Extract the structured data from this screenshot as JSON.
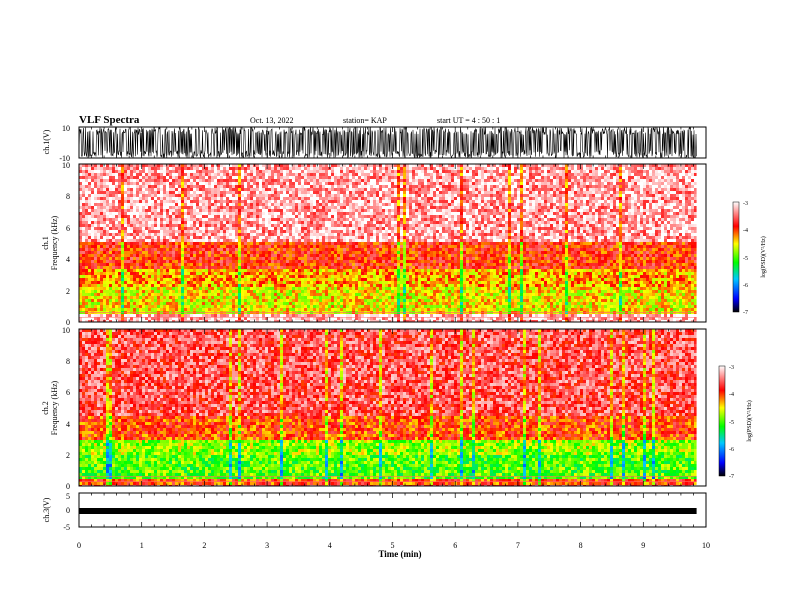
{
  "header": {
    "title": "VLF Spectra",
    "date": "Oct. 13, 2022",
    "station": "station= KAP",
    "start_ut": "start  UT =   4 : 50 : 1"
  },
  "chart_data": [
    {
      "type": "line",
      "panel": "ch1-waveform",
      "ylabel": "ch.1(V)",
      "ylim": [
        -10,
        10
      ],
      "yticks": [
        "10",
        "-10"
      ],
      "x_range_min": [
        0,
        9.85
      ],
      "description_level": "dense oscillating waveform filling most of range"
    },
    {
      "type": "heatmap",
      "panel": "ch1-spectrogram",
      "ylabel": "ch.1",
      "ylabel2": "Frequency  (kHz)",
      "ylim": [
        0,
        10
      ],
      "yticks": [
        "0",
        "2",
        "4",
        "6",
        "8",
        "10"
      ],
      "x_range_min": [
        0,
        9.85
      ],
      "bands_khz": [
        {
          "from": 0,
          "to": 0.6,
          "level": -3.2
        },
        {
          "from": 0.6,
          "to": 2.2,
          "level": -4.5
        },
        {
          "from": 2.2,
          "to": 3.3,
          "level": -4.3
        },
        {
          "from": 3.3,
          "to": 5,
          "level": -3.9
        },
        {
          "from": 5,
          "to": 10,
          "level": -3.3
        }
      ],
      "colorbar": {
        "min": -7,
        "max": -3,
        "ticks": [
          "-3",
          "-4",
          "-5",
          "-6",
          "-7"
        ],
        "label": "log(PSD)(V²/Hz)"
      }
    },
    {
      "type": "heatmap",
      "panel": "ch2-spectrogram",
      "ylabel": "ch.2",
      "ylabel2": "Frequency  (kHz)",
      "ylim": [
        0,
        10
      ],
      "yticks": [
        "0",
        "2",
        "4",
        "6",
        "8",
        "10"
      ],
      "x_range_min": [
        0,
        9.85
      ],
      "bands_khz": [
        {
          "from": 0,
          "to": 0.5,
          "level": -4.0
        },
        {
          "from": 0.5,
          "to": 2.0,
          "level": -5.0
        },
        {
          "from": 2.0,
          "to": 3.0,
          "level": -4.8
        },
        {
          "from": 3.0,
          "to": 4.5,
          "level": -4.0
        },
        {
          "from": 4.5,
          "to": 10,
          "level": -3.6
        }
      ],
      "colorbar": {
        "min": -7,
        "max": -3,
        "ticks": [
          "-3",
          "-4",
          "-5",
          "-6",
          "-7"
        ],
        "label": "log(PSD)(V²/Hz)"
      }
    },
    {
      "type": "line",
      "panel": "ch3-waveform",
      "ylabel": "ch.3(V)",
      "ylim": [
        -5,
        5
      ],
      "yticks": [
        "5",
        "0",
        "-5"
      ],
      "x_range_min": [
        0,
        9.85
      ],
      "level_v": 0
    }
  ],
  "xaxis": {
    "xlabel": "Time  (min)",
    "xlim": [
      0,
      10
    ],
    "xticks": [
      "0",
      "1",
      "2",
      "3",
      "4",
      "5",
      "6",
      "7",
      "8",
      "9",
      "10"
    ]
  },
  "colors": {
    "spectrogram_high": "#ff0000",
    "spectrogram_mid": "#ffff00",
    "spectrogram_low": "#00ff00",
    "background": "#ffffff"
  }
}
